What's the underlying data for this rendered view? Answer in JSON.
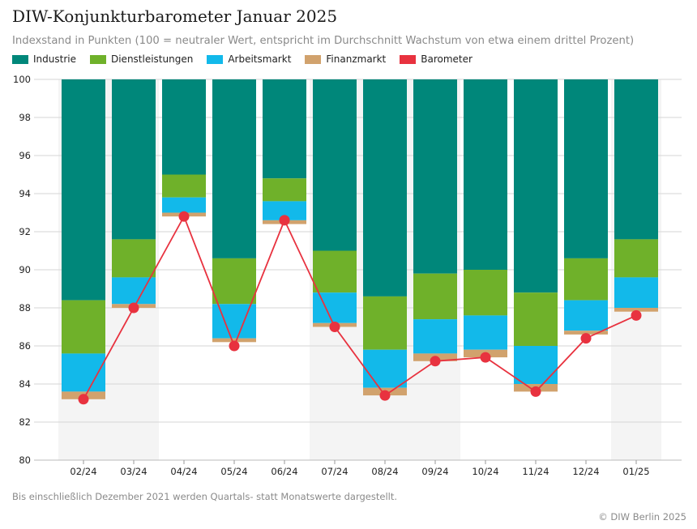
{
  "chart_data": {
    "type": "bar",
    "title": "DIW-Konjunkturbarometer Januar 2025",
    "subtitle": "Indexstand in Punkten (100 = neutraler Wert, entspricht im Durchschnitt Wachstum von etwa einem drittel Prozent)",
    "categories": [
      "02/24",
      "03/24",
      "04/24",
      "05/24",
      "06/24",
      "07/24",
      "08/24",
      "09/24",
      "10/24",
      "11/24",
      "12/24",
      "01/25"
    ],
    "ylim": [
      80,
      100
    ],
    "yticks": [
      "80",
      "82",
      "84",
      "86",
      "88",
      "90",
      "92",
      "94",
      "96",
      "98",
      "100"
    ],
    "grid": true,
    "legend_position": "top-left",
    "series": [
      {
        "name": "Industrie",
        "type": "stacked-bar",
        "color": "#00877a",
        "from": [
          88.4,
          91.6,
          95.0,
          90.6,
          94.8,
          91.0,
          88.6,
          89.8,
          90.0,
          88.8,
          90.6,
          91.6
        ],
        "to": [
          100,
          100,
          100,
          100,
          100,
          100,
          100,
          100,
          100,
          100,
          100,
          100
        ]
      },
      {
        "name": "Dienstleistungen",
        "type": "stacked-bar",
        "color": "#6fb12a",
        "from": [
          85.6,
          89.6,
          93.8,
          88.2,
          93.6,
          88.8,
          85.8,
          87.4,
          87.6,
          86.0,
          88.4,
          89.6
        ],
        "to": [
          88.4,
          91.6,
          95.0,
          90.6,
          94.8,
          91.0,
          88.6,
          89.8,
          90.0,
          88.8,
          90.6,
          91.6
        ]
      },
      {
        "name": "Arbeitsmarkt",
        "type": "stacked-bar",
        "color": "#12b9ea",
        "from": [
          83.6,
          88.2,
          93.0,
          86.4,
          92.6,
          87.2,
          83.8,
          85.6,
          85.8,
          84.0,
          86.8,
          88.0
        ],
        "to": [
          85.6,
          89.6,
          93.8,
          88.2,
          93.6,
          88.8,
          85.8,
          87.4,
          87.6,
          86.0,
          88.4,
          89.6
        ]
      },
      {
        "name": "Finanzmarkt",
        "type": "stacked-bar",
        "color": "#d1a26d",
        "from": [
          83.2,
          88.0,
          92.8,
          86.2,
          92.4,
          87.0,
          83.4,
          85.2,
          85.4,
          83.6,
          86.6,
          87.8
        ],
        "to": [
          83.6,
          88.2,
          93.0,
          86.4,
          92.6,
          87.2,
          83.8,
          85.6,
          85.8,
          84.0,
          86.8,
          88.0
        ]
      },
      {
        "name": "Barometer",
        "type": "line",
        "color": "#e8323f",
        "values": [
          83.2,
          88.0,
          92.8,
          86.0,
          92.6,
          87.0,
          83.4,
          85.2,
          85.4,
          83.6,
          86.4,
          87.6
        ]
      }
    ],
    "shaded_columns": [
      "02/24",
      "03/24",
      "07/24",
      "08/24",
      "09/24",
      "01/25"
    ]
  },
  "footnote": "Bis einschließlich Dezember 2021 werden Quartals- statt Monatswerte dargestellt.",
  "credit": "© DIW Berlin 2025"
}
